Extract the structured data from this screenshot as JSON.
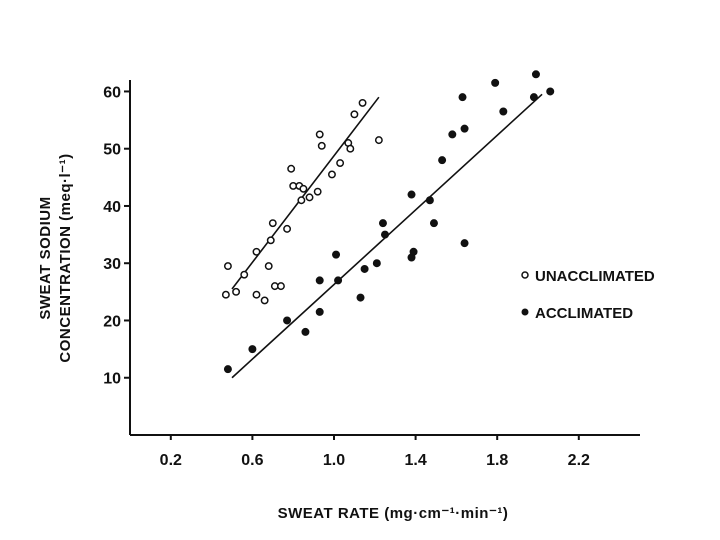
{
  "chart_data": {
    "type": "scatter",
    "xlabel": "SWEAT RATE (mg·cm⁻¹·min⁻¹)",
    "ylabel_lines": [
      "SWEAT SODIUM",
      "CONCENTRATION (meq·l⁻¹)"
    ],
    "xlim": [
      0.0,
      2.5
    ],
    "ylim": [
      0,
      62
    ],
    "xticks": [
      0.2,
      0.6,
      1.0,
      1.4,
      1.8,
      2.2
    ],
    "xtick_labels": [
      "0.2",
      "0.6",
      "1.0",
      "1.4",
      "1.8",
      "2.2"
    ],
    "yticks": [
      10,
      20,
      30,
      40,
      50,
      60
    ],
    "ytick_labels": [
      "10",
      "20",
      "30",
      "40",
      "50",
      "60"
    ],
    "legend_position": "right",
    "series": [
      {
        "name": "UNACCLIMATED",
        "marker": "open-circle",
        "color": "#111111",
        "fit_line": [
          [
            0.5,
            25.5
          ],
          [
            1.22,
            59.0
          ]
        ],
        "points": [
          [
            0.48,
            29.5
          ],
          [
            0.47,
            24.5
          ],
          [
            0.52,
            25.0
          ],
          [
            0.56,
            28.0
          ],
          [
            0.62,
            32.0
          ],
          [
            0.62,
            24.5
          ],
          [
            0.66,
            23.5
          ],
          [
            0.68,
            29.5
          ],
          [
            0.7,
            37.0
          ],
          [
            0.69,
            34.0
          ],
          [
            0.71,
            26.0
          ],
          [
            0.74,
            26.0
          ],
          [
            0.77,
            36.0
          ],
          [
            0.79,
            46.5
          ],
          [
            0.8,
            43.5
          ],
          [
            0.83,
            43.5
          ],
          [
            0.84,
            41.0
          ],
          [
            0.85,
            43.0
          ],
          [
            0.88,
            41.5
          ],
          [
            0.92,
            42.5
          ],
          [
            0.93,
            52.5
          ],
          [
            0.94,
            50.5
          ],
          [
            0.99,
            45.5
          ],
          [
            1.03,
            47.5
          ],
          [
            1.07,
            51.0
          ],
          [
            1.08,
            50.0
          ],
          [
            1.1,
            56.0
          ],
          [
            1.14,
            58.0
          ],
          [
            1.22,
            51.5
          ]
        ]
      },
      {
        "name": "ACCLIMATED",
        "marker": "filled-circle",
        "color": "#111111",
        "fit_line": [
          [
            0.5,
            10.0
          ],
          [
            2.02,
            59.5
          ]
        ],
        "points": [
          [
            0.48,
            11.5
          ],
          [
            0.6,
            15.0
          ],
          [
            0.77,
            20.0
          ],
          [
            0.86,
            18.0
          ],
          [
            0.93,
            21.5
          ],
          [
            0.93,
            27.0
          ],
          [
            1.01,
            31.5
          ],
          [
            1.02,
            27.0
          ],
          [
            1.13,
            24.0
          ],
          [
            1.15,
            29.0
          ],
          [
            1.21,
            30.0
          ],
          [
            1.24,
            37.0
          ],
          [
            1.25,
            35.0
          ],
          [
            1.38,
            31.0
          ],
          [
            1.39,
            32.0
          ],
          [
            1.38,
            42.0
          ],
          [
            1.47,
            41.0
          ],
          [
            1.49,
            37.0
          ],
          [
            1.53,
            48.0
          ],
          [
            1.58,
            52.5
          ],
          [
            1.63,
            59.0
          ],
          [
            1.64,
            53.5
          ],
          [
            1.64,
            33.5
          ],
          [
            1.79,
            61.5
          ],
          [
            1.83,
            56.5
          ],
          [
            1.99,
            63.0
          ],
          [
            1.98,
            59.0
          ],
          [
            2.06,
            60.0
          ]
        ]
      }
    ]
  }
}
